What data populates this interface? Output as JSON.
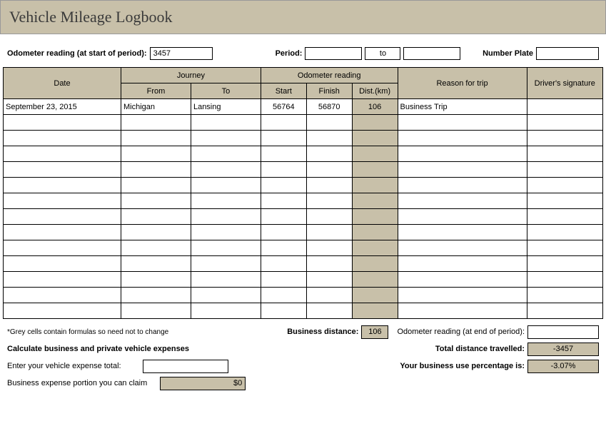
{
  "title": "Vehicle Mileage Logbook",
  "fields": {
    "odometer_label": "Odometer reading (at start of period):",
    "odometer_value": "3457",
    "period_label": "Period:",
    "period_start": "",
    "period_to": "to",
    "period_end": "",
    "plate_label": "Number Plate",
    "plate_value": ""
  },
  "table": {
    "headers": {
      "date": "Date",
      "journey": "Journey",
      "from": "From",
      "to": "To",
      "odometer": "Odometer reading",
      "start": "Start",
      "finish": "Finish",
      "dist": "Dist.(km)",
      "reason": "Reason for trip",
      "signature": "Driver's signature"
    },
    "rows": [
      {
        "date": "September 23, 2015",
        "from": "Michigan",
        "to": "Lansing",
        "start": "56764",
        "finish": "56870",
        "dist": "106",
        "reason": "Business Trip",
        "sig": ""
      },
      {
        "date": "",
        "from": "",
        "to": "",
        "start": "",
        "finish": "",
        "dist": "",
        "reason": "",
        "sig": ""
      },
      {
        "date": "",
        "from": "",
        "to": "",
        "start": "",
        "finish": "",
        "dist": "",
        "reason": "",
        "sig": ""
      },
      {
        "date": "",
        "from": "",
        "to": "",
        "start": "",
        "finish": "",
        "dist": "",
        "reason": "",
        "sig": ""
      },
      {
        "date": "",
        "from": "",
        "to": "",
        "start": "",
        "finish": "",
        "dist": "",
        "reason": "",
        "sig": ""
      },
      {
        "date": "",
        "from": "",
        "to": "",
        "start": "",
        "finish": "",
        "dist": "",
        "reason": "",
        "sig": ""
      },
      {
        "date": "",
        "from": "",
        "to": "",
        "start": "",
        "finish": "",
        "dist": "",
        "reason": "",
        "sig": ""
      },
      {
        "date": "",
        "from": "",
        "to": "",
        "start": "",
        "finish": "",
        "dist": "",
        "reason": "",
        "sig": ""
      },
      {
        "date": "",
        "from": "",
        "to": "",
        "start": "",
        "finish": "",
        "dist": "",
        "reason": "",
        "sig": ""
      },
      {
        "date": "",
        "from": "",
        "to": "",
        "start": "",
        "finish": "",
        "dist": "",
        "reason": "",
        "sig": ""
      },
      {
        "date": "",
        "from": "",
        "to": "",
        "start": "",
        "finish": "",
        "dist": "",
        "reason": "",
        "sig": ""
      },
      {
        "date": "",
        "from": "",
        "to": "",
        "start": "",
        "finish": "",
        "dist": "",
        "reason": "",
        "sig": ""
      },
      {
        "date": "",
        "from": "",
        "to": "",
        "start": "",
        "finish": "",
        "dist": "",
        "reason": "",
        "sig": ""
      },
      {
        "date": "",
        "from": "",
        "to": "",
        "start": "",
        "finish": "",
        "dist": "",
        "reason": "",
        "sig": ""
      }
    ]
  },
  "summary": {
    "note": "*Grey cells contain formulas so need not to change",
    "business_distance_label": "Business distance:",
    "business_distance": "106",
    "odometer_end_label": "Odometer reading (at end of period):",
    "odometer_end": "",
    "calc_heading": "Calculate business and private vehicle expenses",
    "total_distance_label": "Total distance travelled:",
    "total_distance": "-3457",
    "expense_label": "Enter your vehicle expense total:",
    "expense_value": "",
    "percentage_label": "Your business use percentage is:",
    "percentage": "-3.07%",
    "claim_label": "Business expense portion you can claim",
    "claim_value": "$0"
  },
  "colors": {
    "header_bg": "#c8c0a9",
    "border": "#000000"
  }
}
